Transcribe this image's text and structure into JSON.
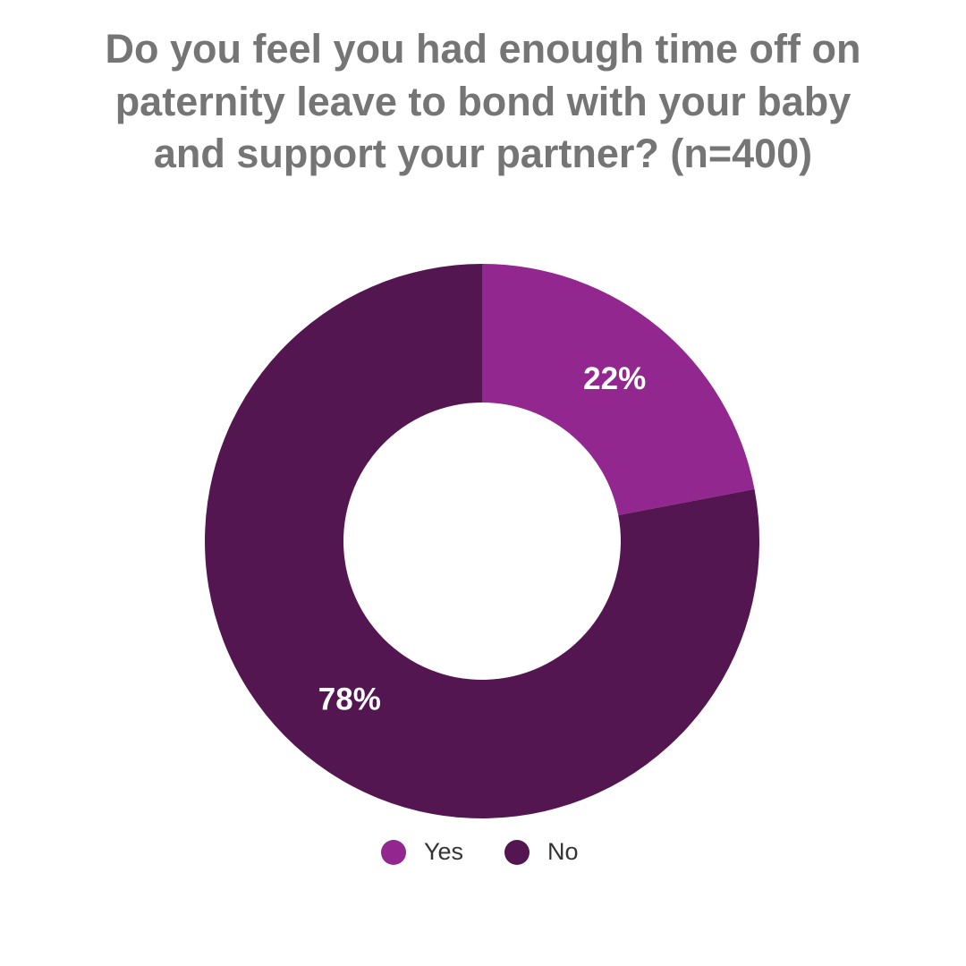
{
  "chart_data": {
    "type": "donut",
    "title": "Do you feel you had enough time off on paternity leave to bond with your baby and support your partner? (n=400)",
    "categories": [
      "Yes",
      "No"
    ],
    "values": [
      22,
      78
    ],
    "value_labels": [
      "22%",
      "78%"
    ],
    "colors": [
      "#92278f",
      "#541651"
    ]
  }
}
